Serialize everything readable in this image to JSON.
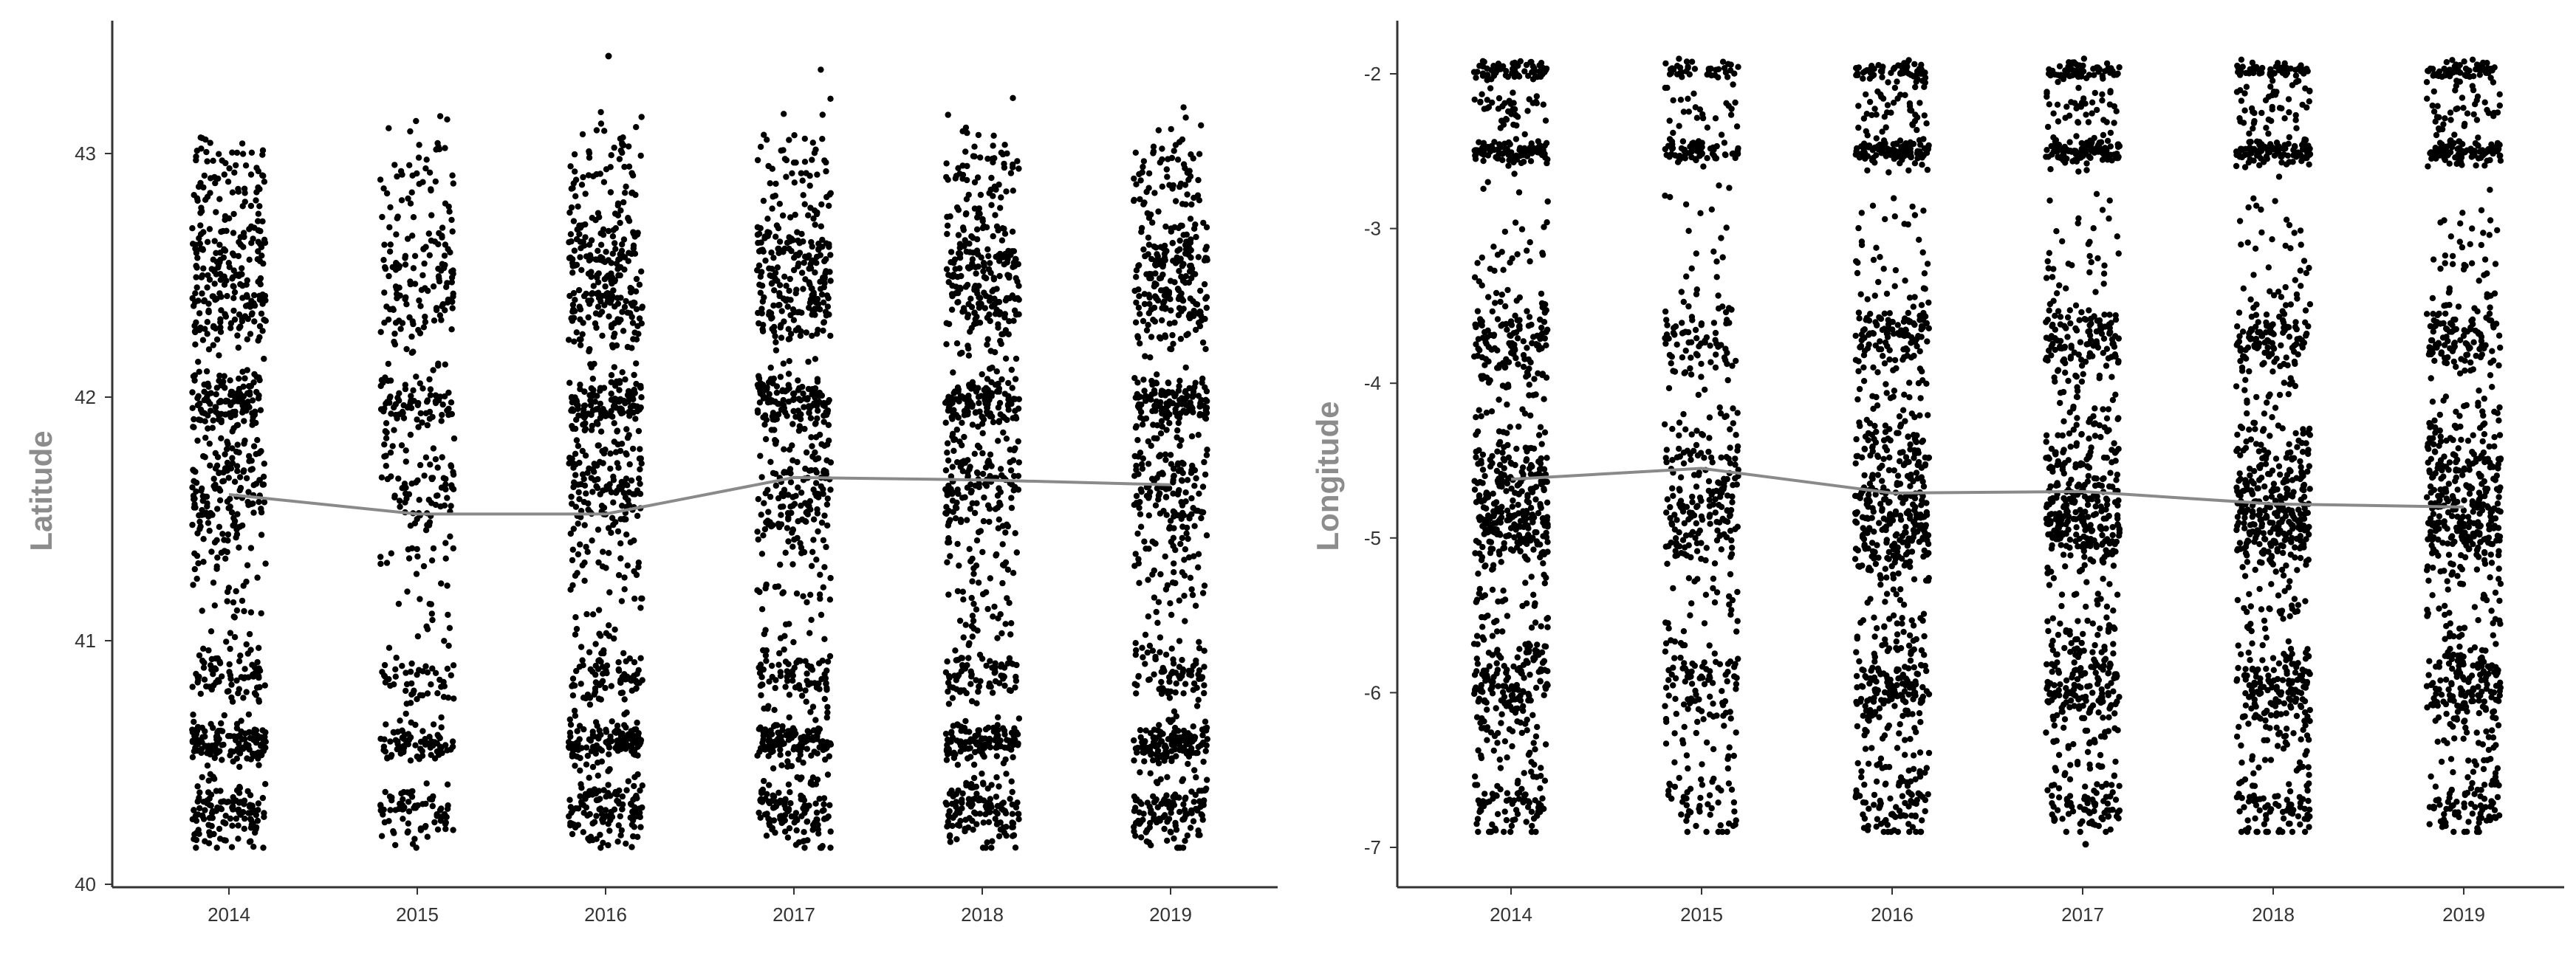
{
  "chart_data": [
    {
      "type": "scatter",
      "title": "",
      "xlabel": "",
      "ylabel": "Latitude",
      "categories": [
        "2014",
        "2015",
        "2016",
        "2017",
        "2018",
        "2019"
      ],
      "ylim": [
        40,
        43.55
      ],
      "yticks": [
        "40",
        "41",
        "42",
        "43"
      ],
      "grid": false,
      "legend": "none",
      "trend_line": {
        "name": "",
        "values": [
          41.6,
          41.52,
          41.52,
          41.67,
          41.66,
          41.64
        ]
      },
      "point_density": [
        1,
        0.6,
        1,
        1,
        1,
        1
      ],
      "bands": [
        [
          40.3,
          0.08,
          3
        ],
        [
          40.58,
          0.04,
          3
        ],
        [
          40.85,
          0.06,
          1.5
        ],
        [
          41.0,
          0.2,
          1
        ],
        [
          41.35,
          0.15,
          1
        ],
        [
          41.65,
          0.12,
          3
        ],
        [
          41.98,
          0.06,
          3
        ],
        [
          42.35,
          0.1,
          2.5
        ],
        [
          42.58,
          0.1,
          2.5
        ],
        [
          42.9,
          0.12,
          1.5
        ]
      ],
      "outliers": [
        [
          2,
          43.4
        ]
      ],
      "colors": {
        "points": "#000000",
        "trend": "#8a8a8a",
        "axis": "#333333",
        "label": "#8c8c8c"
      }
    },
    {
      "type": "scatter",
      "title": "",
      "xlabel": "",
      "ylabel": "Longitude",
      "categories": [
        "2014",
        "2015",
        "2016",
        "2017",
        "2018",
        "2019"
      ],
      "ylim": [
        -7.05,
        -1.75
      ],
      "yticks": [
        "-2",
        "-3",
        "-4",
        "-5",
        "-6",
        "-7"
      ],
      "grid": false,
      "legend": "none",
      "trend_line": {
        "name": "",
        "values": [
          -4.62,
          -4.55,
          -4.71,
          -4.7,
          -4.78,
          -4.8
        ]
      },
      "point_density": [
        1,
        0.6,
        1,
        1,
        1,
        1
      ],
      "bands": [
        [
          -1.98,
          0.03,
          1.5
        ],
        [
          -2.22,
          0.08,
          1
        ],
        [
          -2.5,
          0.04,
          2.5
        ],
        [
          -3.2,
          0.3,
          1
        ],
        [
          -3.7,
          0.12,
          2.5
        ],
        [
          -4.3,
          0.3,
          1.5
        ],
        [
          -4.65,
          0.2,
          3
        ],
        [
          -4.95,
          0.12,
          3
        ],
        [
          -5.5,
          0.3,
          1.5
        ],
        [
          -5.95,
          0.15,
          3
        ],
        [
          -6.4,
          0.25,
          1.5
        ],
        [
          -6.75,
          0.1,
          1.5
        ]
      ],
      "outliers": [
        [
          3,
          -6.98
        ]
      ],
      "colors": {
        "points": "#000000",
        "trend": "#8a8a8a",
        "axis": "#333333",
        "label": "#8c8c8c"
      }
    }
  ]
}
